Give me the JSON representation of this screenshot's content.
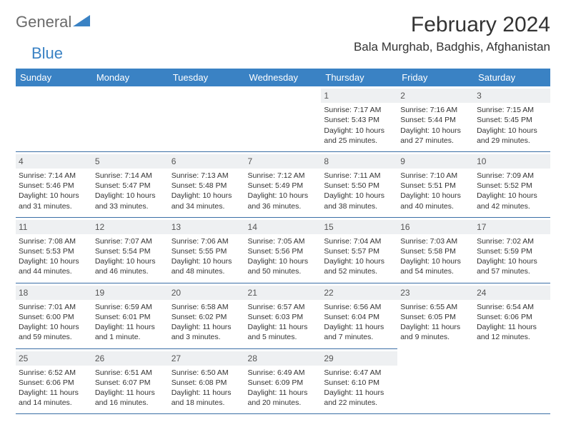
{
  "brand": {
    "part1": "General",
    "part2": "Blue"
  },
  "title": "February 2024",
  "location": "Bala Murghab, Badghis, Afghanistan",
  "colors": {
    "header_bg": "#3a82c4",
    "header_text": "#ffffff",
    "daynum_bg": "#eef0f2",
    "border": "#3a6ea5",
    "body_text": "#333333",
    "logo_gray": "#6b6b6b",
    "logo_blue": "#3a82c4"
  },
  "weekdays": [
    "Sunday",
    "Monday",
    "Tuesday",
    "Wednesday",
    "Thursday",
    "Friday",
    "Saturday"
  ],
  "weeks": [
    [
      null,
      null,
      null,
      null,
      {
        "n": "1",
        "sr": "7:17 AM",
        "ss": "5:43 PM",
        "dl": "10 hours and 25 minutes."
      },
      {
        "n": "2",
        "sr": "7:16 AM",
        "ss": "5:44 PM",
        "dl": "10 hours and 27 minutes."
      },
      {
        "n": "3",
        "sr": "7:15 AM",
        "ss": "5:45 PM",
        "dl": "10 hours and 29 minutes."
      }
    ],
    [
      {
        "n": "4",
        "sr": "7:14 AM",
        "ss": "5:46 PM",
        "dl": "10 hours and 31 minutes."
      },
      {
        "n": "5",
        "sr": "7:14 AM",
        "ss": "5:47 PM",
        "dl": "10 hours and 33 minutes."
      },
      {
        "n": "6",
        "sr": "7:13 AM",
        "ss": "5:48 PM",
        "dl": "10 hours and 34 minutes."
      },
      {
        "n": "7",
        "sr": "7:12 AM",
        "ss": "5:49 PM",
        "dl": "10 hours and 36 minutes."
      },
      {
        "n": "8",
        "sr": "7:11 AM",
        "ss": "5:50 PM",
        "dl": "10 hours and 38 minutes."
      },
      {
        "n": "9",
        "sr": "7:10 AM",
        "ss": "5:51 PM",
        "dl": "10 hours and 40 minutes."
      },
      {
        "n": "10",
        "sr": "7:09 AM",
        "ss": "5:52 PM",
        "dl": "10 hours and 42 minutes."
      }
    ],
    [
      {
        "n": "11",
        "sr": "7:08 AM",
        "ss": "5:53 PM",
        "dl": "10 hours and 44 minutes."
      },
      {
        "n": "12",
        "sr": "7:07 AM",
        "ss": "5:54 PM",
        "dl": "10 hours and 46 minutes."
      },
      {
        "n": "13",
        "sr": "7:06 AM",
        "ss": "5:55 PM",
        "dl": "10 hours and 48 minutes."
      },
      {
        "n": "14",
        "sr": "7:05 AM",
        "ss": "5:56 PM",
        "dl": "10 hours and 50 minutes."
      },
      {
        "n": "15",
        "sr": "7:04 AM",
        "ss": "5:57 PM",
        "dl": "10 hours and 52 minutes."
      },
      {
        "n": "16",
        "sr": "7:03 AM",
        "ss": "5:58 PM",
        "dl": "10 hours and 54 minutes."
      },
      {
        "n": "17",
        "sr": "7:02 AM",
        "ss": "5:59 PM",
        "dl": "10 hours and 57 minutes."
      }
    ],
    [
      {
        "n": "18",
        "sr": "7:01 AM",
        "ss": "6:00 PM",
        "dl": "10 hours and 59 minutes."
      },
      {
        "n": "19",
        "sr": "6:59 AM",
        "ss": "6:01 PM",
        "dl": "11 hours and 1 minute."
      },
      {
        "n": "20",
        "sr": "6:58 AM",
        "ss": "6:02 PM",
        "dl": "11 hours and 3 minutes."
      },
      {
        "n": "21",
        "sr": "6:57 AM",
        "ss": "6:03 PM",
        "dl": "11 hours and 5 minutes."
      },
      {
        "n": "22",
        "sr": "6:56 AM",
        "ss": "6:04 PM",
        "dl": "11 hours and 7 minutes."
      },
      {
        "n": "23",
        "sr": "6:55 AM",
        "ss": "6:05 PM",
        "dl": "11 hours and 9 minutes."
      },
      {
        "n": "24",
        "sr": "6:54 AM",
        "ss": "6:06 PM",
        "dl": "11 hours and 12 minutes."
      }
    ],
    [
      {
        "n": "25",
        "sr": "6:52 AM",
        "ss": "6:06 PM",
        "dl": "11 hours and 14 minutes."
      },
      {
        "n": "26",
        "sr": "6:51 AM",
        "ss": "6:07 PM",
        "dl": "11 hours and 16 minutes."
      },
      {
        "n": "27",
        "sr": "6:50 AM",
        "ss": "6:08 PM",
        "dl": "11 hours and 18 minutes."
      },
      {
        "n": "28",
        "sr": "6:49 AM",
        "ss": "6:09 PM",
        "dl": "11 hours and 20 minutes."
      },
      {
        "n": "29",
        "sr": "6:47 AM",
        "ss": "6:10 PM",
        "dl": "11 hours and 22 minutes."
      },
      null,
      null
    ]
  ],
  "labels": {
    "sunrise": "Sunrise: ",
    "sunset": "Sunset: ",
    "daylight": "Daylight: "
  }
}
